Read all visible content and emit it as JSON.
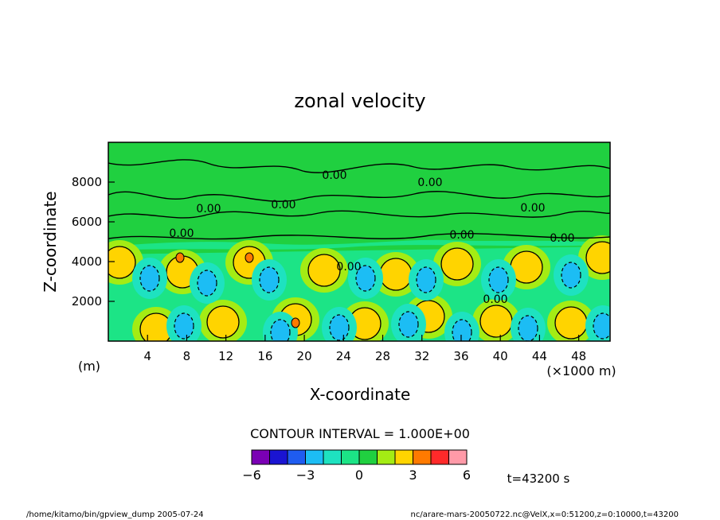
{
  "chart_data": {
    "type": "heatmap",
    "title": "zonal velocity",
    "xlabel": "X-coordinate",
    "ylabel": "Z-coordinate",
    "x_unit_left": "(m)",
    "x_unit_right": "(×1000 m)",
    "xlim": [
      0,
      51.2
    ],
    "ylim": [
      0,
      10000
    ],
    "x_ticks": [
      4,
      8,
      12,
      16,
      20,
      24,
      28,
      32,
      36,
      40,
      44,
      48
    ],
    "y_ticks": [
      2000,
      4000,
      6000,
      8000
    ],
    "contour_labels": [
      "0.00",
      "0.00",
      "0.00",
      "0.00",
      "0.00",
      "0.00",
      "0.00",
      "0.00",
      "0.00",
      "0.00"
    ],
    "contour_interval_text": "CONTOUR INTERVAL = 1.000E+00",
    "colorbar": {
      "colors": [
        "#7a00b4",
        "#1a14d2",
        "#1f5cf0",
        "#1cbdf4",
        "#1ee2c0",
        "#1ce486",
        "#20d040",
        "#a4ec14",
        "#ffd400",
        "#ff7a00",
        "#ff2a2a",
        "#ff9aa8"
      ],
      "tick_labels": [
        "−6",
        "−3",
        "0",
        "3",
        "6"
      ],
      "tick_values": [
        -6,
        -3,
        0,
        3,
        6
      ]
    },
    "time_label": "t=43200 s"
  },
  "footer": {
    "left": "/home/kitamo/bin/gpview_dump  2005-07-24",
    "right": "nc/arare-mars-20050722.nc@VelX,x=0:51200,z=0:10000,t=43200"
  }
}
